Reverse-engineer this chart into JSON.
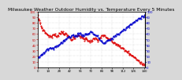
{
  "title": "Milwaukee Weather Outdoor Humidity vs. Temperature Every 5 Minutes",
  "background_color": "#d8d8d8",
  "plot_bg_color": "#ffffff",
  "grid_color": "#aaaaaa",
  "temp_color": "#dd0000",
  "humidity_color": "#0000cc",
  "linewidth": 0.7,
  "markersize": 1.0,
  "temp_data": [
    92,
    88,
    84,
    80,
    76,
    72,
    70,
    68,
    66,
    65,
    63,
    62,
    60,
    59,
    58,
    57,
    56,
    55,
    55,
    56,
    57,
    58,
    58,
    57,
    56,
    57,
    58,
    59,
    60,
    61,
    62,
    63,
    64,
    63,
    62,
    61,
    60,
    59,
    58,
    57,
    56,
    55,
    54,
    53,
    52,
    51,
    50,
    51,
    52,
    53,
    54,
    55,
    56,
    57,
    58,
    57,
    56,
    55,
    54,
    53,
    52,
    51,
    50,
    51,
    52,
    51,
    50,
    49,
    48,
    47,
    46,
    47,
    48,
    49,
    50,
    51,
    52,
    51,
    50,
    49,
    48,
    50,
    52,
    55,
    57,
    58,
    57,
    56,
    55,
    54,
    53,
    52,
    51,
    52,
    51,
    50,
    49,
    48,
    47,
    46,
    45,
    44,
    43,
    42,
    41,
    40,
    39,
    38,
    37,
    36,
    35,
    34,
    33,
    32,
    31,
    30,
    29,
    28,
    27,
    26,
    25,
    24,
    23,
    22,
    21,
    20,
    19,
    18,
    17,
    16,
    15,
    14,
    13,
    12,
    11,
    10,
    9,
    8,
    7,
    6,
    5,
    4
  ],
  "humidity_data": [
    18,
    19,
    20,
    21,
    22,
    23,
    24,
    25,
    26,
    27,
    28,
    29,
    30,
    31,
    32,
    33,
    33,
    34,
    35,
    34,
    33,
    34,
    35,
    36,
    37,
    38,
    39,
    40,
    41,
    42,
    43,
    44,
    45,
    46,
    47,
    48,
    49,
    50,
    51,
    52,
    53,
    54,
    55,
    55,
    56,
    57,
    58,
    57,
    56,
    55,
    56,
    57,
    58,
    59,
    60,
    61,
    60,
    59,
    58,
    57,
    58,
    59,
    60,
    59,
    58,
    59,
    60,
    61,
    62,
    63,
    64,
    63,
    62,
    61,
    60,
    59,
    58,
    57,
    56,
    55,
    54,
    52,
    50,
    48,
    46,
    45,
    44,
    43,
    44,
    45,
    46,
    47,
    48,
    47,
    48,
    49,
    50,
    51,
    52,
    53,
    54,
    55,
    56,
    57,
    58,
    59,
    60,
    61,
    62,
    63,
    64,
    65,
    66,
    67,
    68,
    69,
    70,
    71,
    72,
    73,
    74,
    75,
    76,
    77,
    78,
    79,
    80,
    81,
    82,
    83,
    84,
    85,
    86,
    87,
    88,
    89,
    90,
    91,
    92,
    93,
    94,
    95
  ],
  "ylim": [
    0,
    100
  ],
  "yticks_left": [
    0,
    10,
    20,
    30,
    40,
    50,
    60,
    70,
    80,
    90,
    100
  ],
  "yticks_right": [
    0,
    10,
    20,
    30,
    40,
    50,
    60,
    70,
    80,
    90,
    100
  ],
  "title_fontsize": 4.2,
  "tick_fontsize": 2.8,
  "tick_labelcolor_left": "#cc0000",
  "tick_labelcolor_right": "#0000cc"
}
